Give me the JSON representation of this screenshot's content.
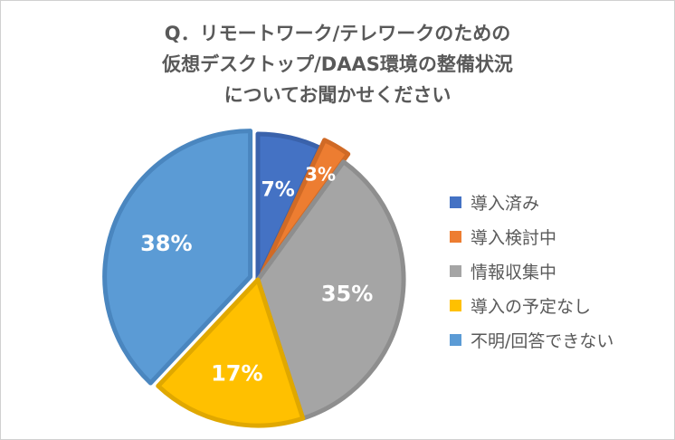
{
  "chart_data": {
    "type": "pie",
    "title_lines": [
      "Q．リモートワーク/テレワークのための",
      "仮想デスクトップ/DAAS環境の整備状況",
      "についてお聞かせください"
    ],
    "categories": [
      "導入済み",
      "導入検討中",
      "情報収集中",
      "導入の予定なし",
      "不明/回答できない"
    ],
    "values": [
      7,
      3,
      35,
      17,
      38
    ],
    "data_labels": [
      "7%",
      "3%",
      "35%",
      "17%",
      "38%"
    ],
    "colors": [
      "#4472c4",
      "#ed7d31",
      "#a5a5a5",
      "#ffc000",
      "#5b9bd5"
    ],
    "edge_colors": [
      "#3a62ab",
      "#d06a26",
      "#8e8e8e",
      "#e0a800",
      "#4a86bf"
    ],
    "label_color": "#ffffff",
    "legend_placement": "right"
  }
}
